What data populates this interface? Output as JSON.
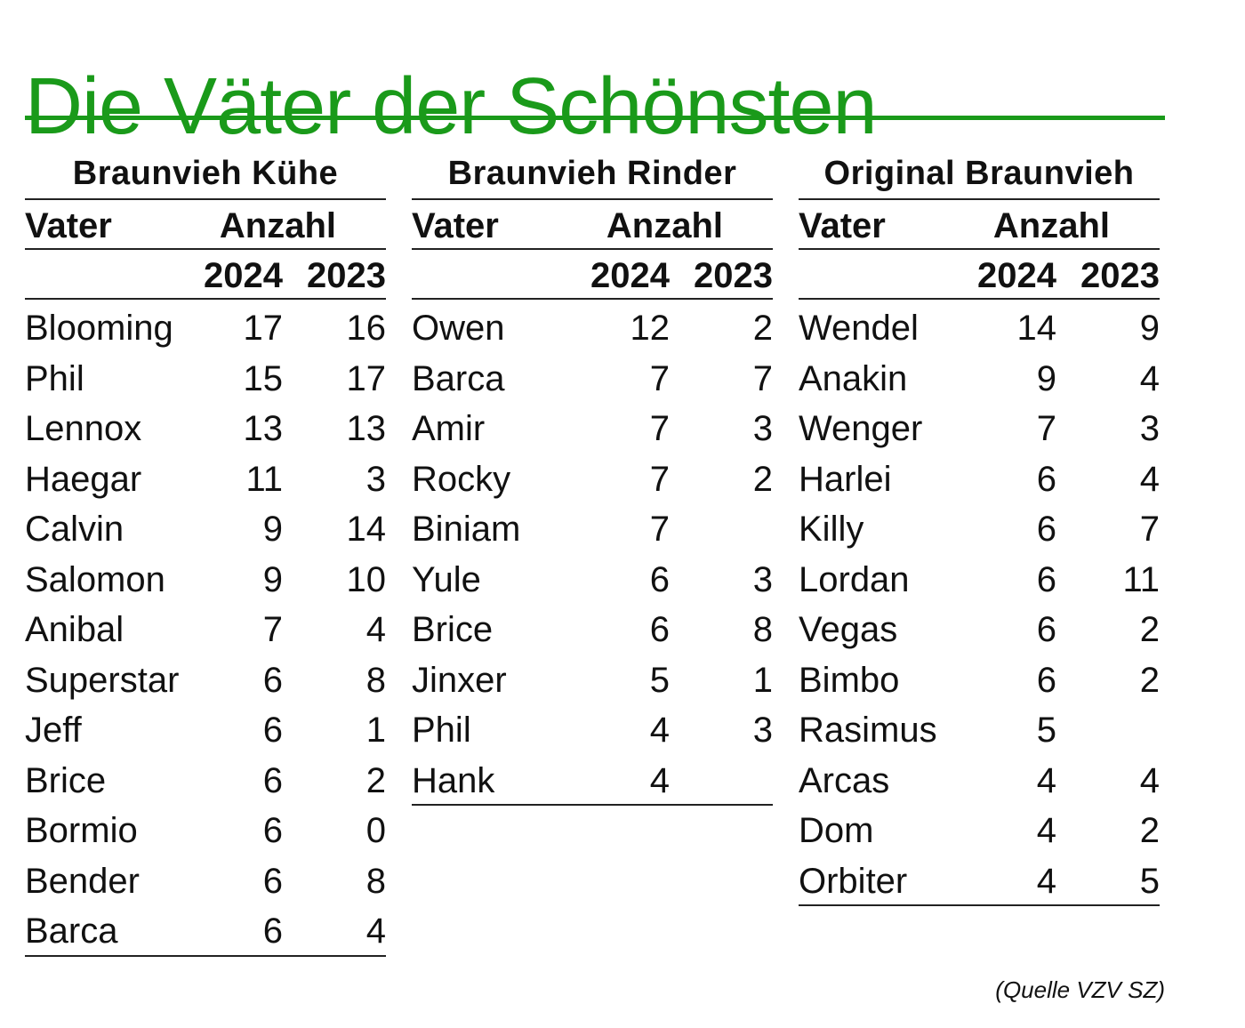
{
  "title": "Die Väter der Schönsten",
  "colors": {
    "title": "#1a9a1a",
    "rule": "#1a9a1a",
    "text": "#111111"
  },
  "tables": [
    {
      "heading": "Braunvieh Kühe",
      "col_father": "Vater",
      "col_count": "Anzahl",
      "year1": "2024",
      "year2": "2023",
      "rows": [
        {
          "name": "Blooming",
          "v2024": "17",
          "v2023": "16"
        },
        {
          "name": "Phil",
          "v2024": "15",
          "v2023": "17"
        },
        {
          "name": "Lennox",
          "v2024": "13",
          "v2023": "13"
        },
        {
          "name": "Haegar",
          "v2024": "11",
          "v2023": "3"
        },
        {
          "name": "Calvin",
          "v2024": "9",
          "v2023": "14"
        },
        {
          "name": "Salomon",
          "v2024": "9",
          "v2023": "10"
        },
        {
          "name": "Anibal",
          "v2024": "7",
          "v2023": "4"
        },
        {
          "name": "Superstar",
          "v2024": "6",
          "v2023": "8"
        },
        {
          "name": "Jeff",
          "v2024": "6",
          "v2023": "1"
        },
        {
          "name": "Brice",
          "v2024": "6",
          "v2023": "2"
        },
        {
          "name": "Bormio",
          "v2024": "6",
          "v2023": "0"
        },
        {
          "name": "Bender",
          "v2024": "6",
          "v2023": "8"
        },
        {
          "name": "Barca",
          "v2024": "6",
          "v2023": "4"
        }
      ]
    },
    {
      "heading": "Braunvieh Rinder",
      "col_father": "Vater",
      "col_count": "Anzahl",
      "year1": "2024",
      "year2": "2023",
      "rows": [
        {
          "name": "Owen",
          "v2024": "12",
          "v2023": "2"
        },
        {
          "name": "Barca",
          "v2024": "7",
          "v2023": "7"
        },
        {
          "name": "Amir",
          "v2024": "7",
          "v2023": "3"
        },
        {
          "name": "Rocky",
          "v2024": "7",
          "v2023": "2"
        },
        {
          "name": "Biniam",
          "v2024": "7",
          "v2023": ""
        },
        {
          "name": "Yule",
          "v2024": "6",
          "v2023": "3"
        },
        {
          "name": "Brice",
          "v2024": "6",
          "v2023": "8"
        },
        {
          "name": "Jinxer",
          "v2024": "5",
          "v2023": "1"
        },
        {
          "name": "Phil",
          "v2024": "4",
          "v2023": "3"
        },
        {
          "name": "Hank",
          "v2024": "4",
          "v2023": ""
        }
      ]
    },
    {
      "heading": "Original Braunvieh",
      "col_father": "Vater",
      "col_count": "Anzahl",
      "year1": "2024",
      "year2": "2023",
      "rows": [
        {
          "name": "Wendel",
          "v2024": "14",
          "v2023": "9"
        },
        {
          "name": "Anakin",
          "v2024": "9",
          "v2023": "4"
        },
        {
          "name": "Wenger",
          "v2024": "7",
          "v2023": "3"
        },
        {
          "name": "Harlei",
          "v2024": "6",
          "v2023": "4"
        },
        {
          "name": "Killy",
          "v2024": "6",
          "v2023": "7"
        },
        {
          "name": "Lordan",
          "v2024": "6",
          "v2023": "11"
        },
        {
          "name": "Vegas",
          "v2024": "6",
          "v2023": "2"
        },
        {
          "name": "Bimbo",
          "v2024": "6",
          "v2023": "2"
        },
        {
          "name": "Rasimus",
          "v2024": "5",
          "v2023": ""
        },
        {
          "name": "Arcas",
          "v2024": "4",
          "v2023": "4"
        },
        {
          "name": "Dom",
          "v2024": "4",
          "v2023": "2"
        },
        {
          "name": "Orbiter",
          "v2024": "4",
          "v2023": "5"
        }
      ]
    }
  ],
  "source": "(Quelle VZV SZ)"
}
